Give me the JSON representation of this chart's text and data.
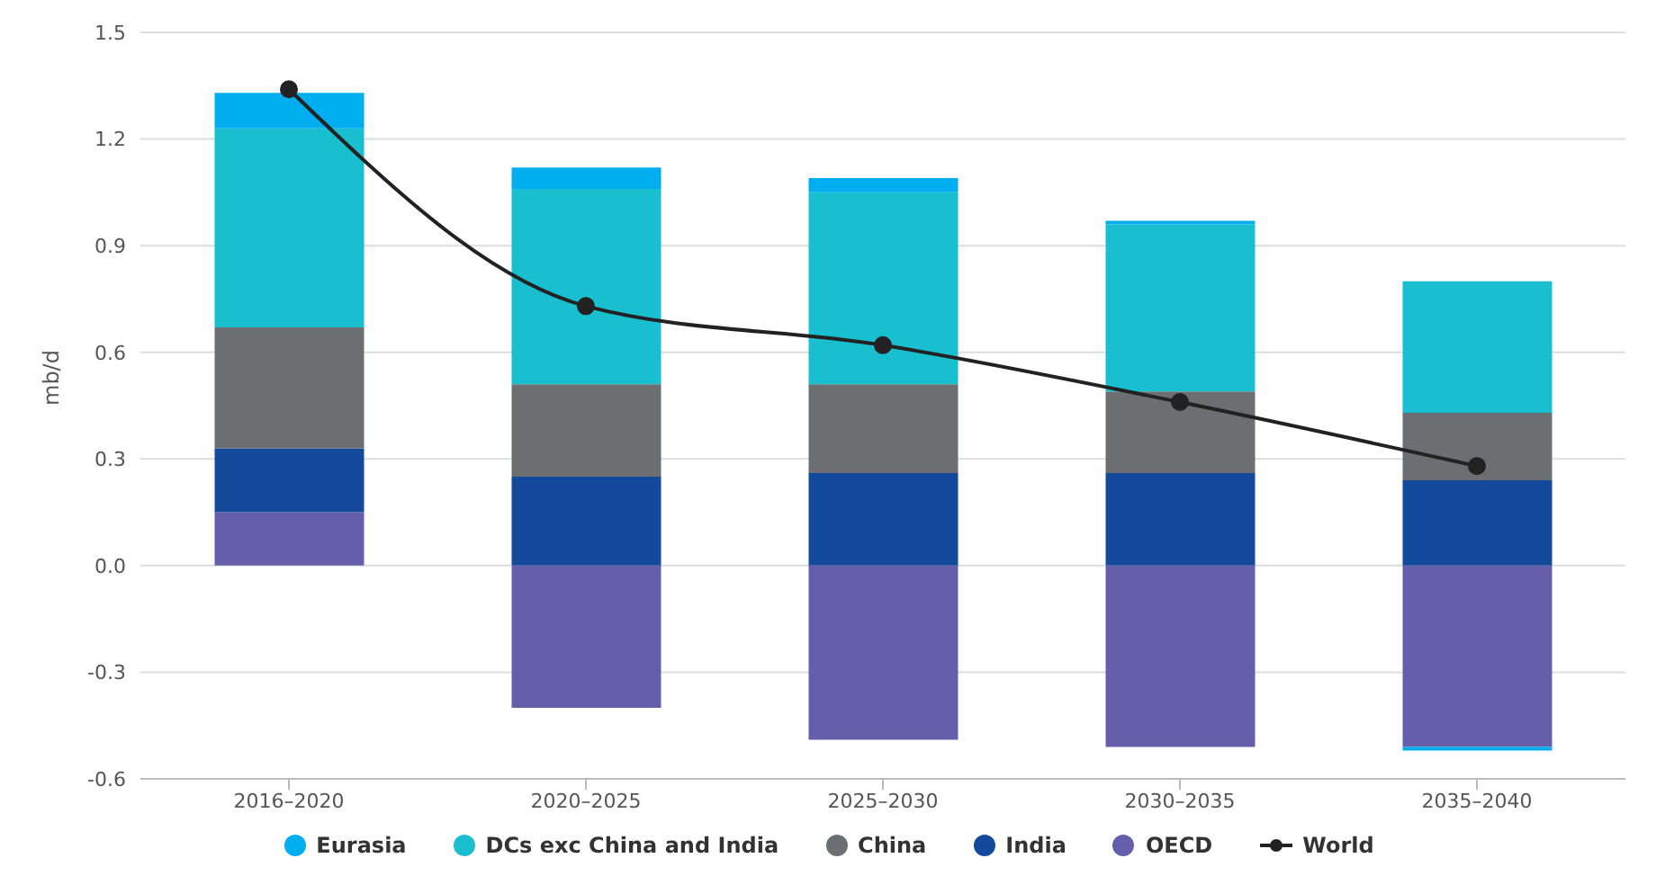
{
  "chart_data": {
    "type": "bar",
    "stacked": true,
    "ylabel": "mb/d",
    "categories": [
      "2016–2020",
      "2020–2025",
      "2025–2030",
      "2030–2035",
      "2035–2040"
    ],
    "series": [
      {
        "name": "OECD",
        "color": "#655fab",
        "values": [
          0.15,
          -0.4,
          -0.49,
          -0.51,
          -0.51
        ]
      },
      {
        "name": "India",
        "color": "#134a9c",
        "values": [
          0.18,
          0.25,
          0.26,
          0.26,
          0.24
        ]
      },
      {
        "name": "China",
        "color": "#6d6e71",
        "values": [
          0.34,
          0.26,
          0.25,
          0.23,
          0.19
        ]
      },
      {
        "name": "DCs exc China and India",
        "color": "#19bfcf",
        "values": [
          0.56,
          0.55,
          0.54,
          0.47,
          0.37
        ]
      },
      {
        "name": "Eurasia",
        "color": "#00aeef",
        "values": [
          0.1,
          0.06,
          0.04,
          0.01,
          -0.01
        ]
      },
      {
        "name": "World",
        "type": "line",
        "color": "#222222",
        "marker": "circle",
        "values": [
          1.34,
          0.73,
          0.62,
          0.46,
          0.28
        ]
      }
    ],
    "ylim": [
      -0.6,
      1.5
    ],
    "yticks": [
      -0.6,
      -0.3,
      {
        "value": 0,
        "label": "0.0"
      },
      0.3,
      0.6,
      0.9,
      1.2,
      1.5
    ],
    "grid": "y",
    "legend": "bottom"
  }
}
